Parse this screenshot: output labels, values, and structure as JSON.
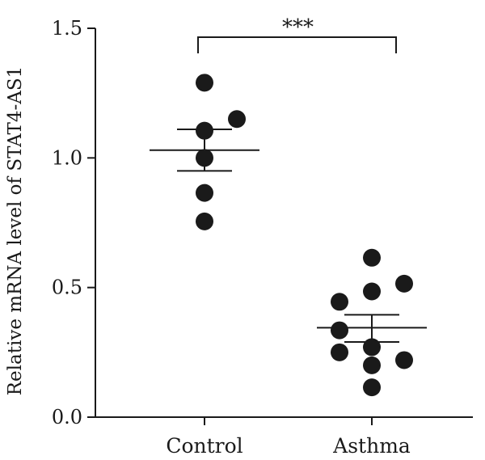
{
  "chart_data": {
    "type": "scatter",
    "title": "",
    "xlabel": "",
    "ylabel": "Relative mRNA level of STAT4-AS1",
    "ylim": [
      0.0,
      1.5
    ],
    "yticks": [
      0.0,
      0.5,
      1.0,
      1.5
    ],
    "ytick_labels": [
      "0.0",
      "0.5",
      "1.0",
      "1.5"
    ],
    "categories": [
      "Control",
      "Asthma"
    ],
    "groups": [
      {
        "category": "Control",
        "points": [
          {
            "jitter": 0,
            "y": 1.29
          },
          {
            "jitter": 0,
            "y": 1.105
          },
          {
            "jitter": 1,
            "y": 1.15
          },
          {
            "jitter": 0,
            "y": 1.0
          },
          {
            "jitter": 0,
            "y": 0.865
          },
          {
            "jitter": 0,
            "y": 0.755
          }
        ],
        "mean": 1.03,
        "sem_upper": 1.11,
        "sem_lower": 0.95
      },
      {
        "category": "Asthma",
        "points": [
          {
            "jitter": -1,
            "y": 0.445
          },
          {
            "jitter": 0,
            "y": 0.615
          },
          {
            "jitter": 0,
            "y": 0.485
          },
          {
            "jitter": 1,
            "y": 0.515
          },
          {
            "jitter": -1,
            "y": 0.335
          },
          {
            "jitter": -1,
            "y": 0.25
          },
          {
            "jitter": 0,
            "y": 0.27
          },
          {
            "jitter": 0,
            "y": 0.2
          },
          {
            "jitter": 1,
            "y": 0.22
          },
          {
            "jitter": 0,
            "y": 0.115
          }
        ],
        "mean": 0.345,
        "sem_upper": 0.395,
        "sem_lower": 0.29
      }
    ],
    "annotations": [
      {
        "type": "significance-bracket",
        "from": "Control",
        "to": "Asthma",
        "label": "***"
      }
    ],
    "colors": {
      "points": "#1a1a1a",
      "lines": "#1a1a1a"
    },
    "grid": false,
    "legend": "none"
  }
}
